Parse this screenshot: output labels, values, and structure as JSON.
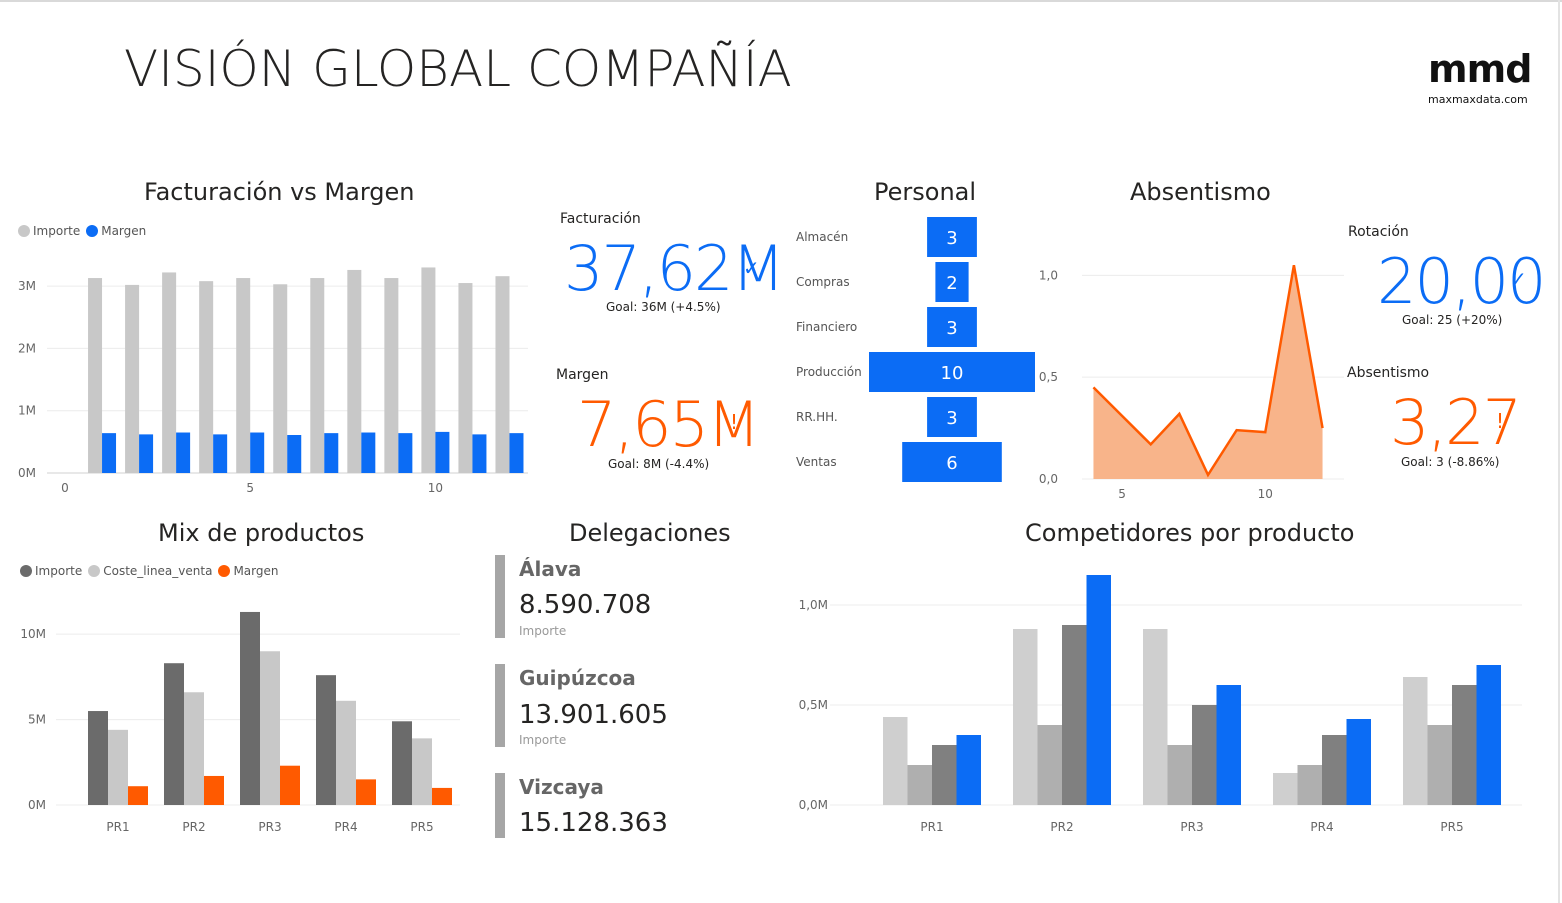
{
  "page": {
    "title": "VISIÓN GLOBAL COMPAÑÍA",
    "logo_main": "mmd",
    "logo_sub": "maxmaxdata.com"
  },
  "colors": {
    "grey_light": "#c8c8c8",
    "grey_mid": "#a6a6a6",
    "grey_dark": "#6b6b6b",
    "blue": "#0b6cf5",
    "orange": "#ff5a00",
    "orange_fill": "#f8b48a"
  },
  "kpis": {
    "facturacion": {
      "label": "Facturación",
      "value": "37,62M",
      "mark": "✓",
      "goal": "Goal: 36M (+4.5%)"
    },
    "margen": {
      "label": "Margen",
      "value": "7,65M",
      "mark": "!",
      "goal": "Goal: 8M (-4.4%)"
    },
    "rotacion": {
      "label": "Rotación",
      "value": "20,00",
      "mark": "✓",
      "goal": "Goal: 25 (+20%)"
    },
    "absentismo": {
      "label": "Absentismo",
      "value": "3,27",
      "mark": "!",
      "goal": "Goal: 3 (-8.86%)"
    }
  },
  "delegaciones": {
    "title": "Delegaciones",
    "cards": [
      {
        "name": "Álava",
        "value": "8.590.708",
        "sub": "Importe"
      },
      {
        "name": "Guipúzcoa",
        "value": "13.901.605",
        "sub": "Importe"
      },
      {
        "name": "Vizcaya",
        "value": "15.128.363",
        "sub": ""
      }
    ]
  },
  "chart_data": [
    {
      "id": "facturacion_margen",
      "type": "bar",
      "title": "Facturación vs Margen",
      "x": [
        1,
        2,
        3,
        4,
        5,
        6,
        7,
        8,
        9,
        10,
        11,
        12
      ],
      "series": [
        {
          "name": "Importe",
          "color": "#c8c8c8",
          "values": [
            3.13,
            3.02,
            3.22,
            3.08,
            3.13,
            3.03,
            3.13,
            3.26,
            3.13,
            3.3,
            3.05,
            3.16
          ]
        },
        {
          "name": "Margen",
          "color": "#0b6cf5",
          "values": [
            0.64,
            0.62,
            0.65,
            0.62,
            0.65,
            0.61,
            0.64,
            0.65,
            0.64,
            0.66,
            0.62,
            0.64
          ]
        }
      ],
      "xlim": [
        0,
        12.5
      ],
      "xticks": [
        "0",
        "5",
        "10"
      ],
      "xtick_values": [
        0,
        5,
        10
      ],
      "ylim": [
        0,
        3.5
      ],
      "yticks": [
        "0M",
        "1M",
        "2M",
        "3M"
      ],
      "ytick_values": [
        0,
        1,
        2,
        3
      ],
      "legend": "top-left",
      "grid": true
    },
    {
      "id": "personal",
      "type": "bar",
      "orientation": "horizontal",
      "title": "Personal",
      "categories": [
        "Almacén",
        "Compras",
        "Financiero",
        "Producción",
        "RR.HH.",
        "Ventas"
      ],
      "values": [
        3,
        2,
        3,
        10,
        3,
        6
      ],
      "color": "#0b6cf5",
      "data_labels": true
    },
    {
      "id": "absentismo",
      "type": "area",
      "title": "Absentismo",
      "x": [
        4,
        5,
        6,
        7,
        8,
        9,
        10,
        11,
        12
      ],
      "values": [
        0.45,
        0.31,
        0.17,
        0.32,
        0.02,
        0.24,
        0.23,
        1.05,
        0.25
      ],
      "line_color": "#ff5a00",
      "fill_color": "#f8b48a",
      "xlim": [
        3.6,
        12.4
      ],
      "xticks": [
        "5",
        "10"
      ],
      "xtick_values": [
        5,
        10
      ],
      "ylim": [
        0,
        1.1
      ],
      "yticks": [
        "0,0",
        "0,5",
        "1,0"
      ],
      "ytick_values": [
        0,
        0.5,
        1.0
      ],
      "grid": true
    },
    {
      "id": "mix_productos",
      "type": "bar",
      "title": "Mix de productos",
      "categories": [
        "PR1",
        "PR2",
        "PR3",
        "PR4",
        "PR5"
      ],
      "series": [
        {
          "name": "Importe",
          "color": "#6b6b6b",
          "values": [
            5.5,
            8.3,
            11.3,
            7.6,
            4.9
          ]
        },
        {
          "name": "Coste_linea_venta",
          "color": "#c8c8c8",
          "values": [
            4.4,
            6.6,
            9.0,
            6.1,
            3.9
          ]
        },
        {
          "name": "Margen",
          "color": "#ff5a00",
          "values": [
            1.1,
            1.7,
            2.3,
            1.5,
            1.0
          ]
        }
      ],
      "ylim": [
        0,
        12
      ],
      "yticks": [
        "0M",
        "5M",
        "10M"
      ],
      "ytick_values": [
        0,
        5,
        10
      ],
      "legend": "top-left",
      "grid": true
    },
    {
      "id": "competidores",
      "type": "bar",
      "title": "Competidores por producto",
      "categories": [
        "PR1",
        "PR2",
        "PR3",
        "PR4",
        "PR5"
      ],
      "series": [
        {
          "color": "#cfcfcf",
          "values": [
            0.44,
            0.88,
            0.88,
            0.16,
            0.64
          ]
        },
        {
          "color": "#afafaf",
          "values": [
            0.2,
            0.4,
            0.3,
            0.2,
            0.4
          ]
        },
        {
          "color": "#808080",
          "values": [
            0.3,
            0.9,
            0.5,
            0.35,
            0.6
          ]
        },
        {
          "color": "#0b6cf5",
          "values": [
            0.35,
            1.15,
            0.6,
            0.43,
            0.7
          ]
        }
      ],
      "ylim": [
        0,
        1.15
      ],
      "yticks": [
        "0,0M",
        "0,5M",
        "1,0M"
      ],
      "ytick_values": [
        0,
        0.5,
        1.0
      ],
      "grid": true
    }
  ]
}
